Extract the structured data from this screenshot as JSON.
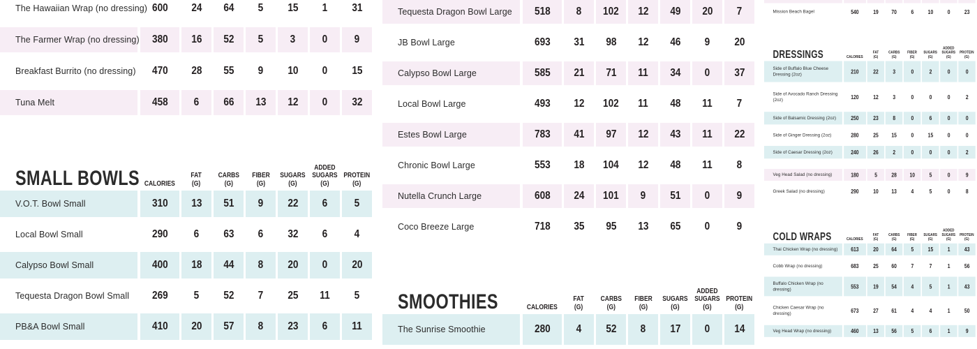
{
  "page": {
    "background": "#ffffff",
    "text_color": "#231f20",
    "shade_pink": "#f7edf5",
    "shade_blue": "#ddeff1"
  },
  "columns": [
    {
      "lines": [
        "CALORIES"
      ]
    },
    {
      "lines": [
        "FAT",
        "(G)"
      ]
    },
    {
      "lines": [
        "CARBS",
        "(G)"
      ]
    },
    {
      "lines": [
        "FIBER",
        "(G)"
      ]
    },
    {
      "lines": [
        "SUGARS",
        "(G)"
      ]
    },
    {
      "lines": [
        "ADDED",
        "SUGARS",
        "(G)"
      ]
    },
    {
      "lines": [
        "PROTEIN",
        "(G)"
      ]
    }
  ],
  "tables": {
    "hot_wraps": {
      "title": "",
      "show_header": false,
      "shade": "pink",
      "rows": [
        {
          "name": "The Hawaiian Wrap (no dressing)",
          "values": [
            "600",
            "24",
            "64",
            "5",
            "15",
            "1",
            "31"
          ],
          "shaded": false
        },
        {
          "name": "The Farmer Wrap (no dressing)",
          "values": [
            "380",
            "16",
            "52",
            "5",
            "3",
            "0",
            "9"
          ],
          "shaded": true
        },
        {
          "name": "Breakfast Burrito (no dressing)",
          "values": [
            "470",
            "28",
            "55",
            "9",
            "10",
            "0",
            "15"
          ],
          "shaded": false
        },
        {
          "name": "Tuna Melt",
          "values": [
            "458",
            "6",
            "66",
            "13",
            "12",
            "0",
            "32"
          ],
          "shaded": true
        }
      ]
    },
    "small_bowls": {
      "title": "SMALL BOWLS",
      "show_header": true,
      "shade": "blue",
      "rows": [
        {
          "name": "V.O.T. Bowl Small",
          "values": [
            "310",
            "13",
            "51",
            "9",
            "22",
            "6",
            "5"
          ],
          "shaded": true
        },
        {
          "name": "Local Bowl Small",
          "values": [
            "290",
            "6",
            "63",
            "6",
            "32",
            "6",
            "4"
          ],
          "shaded": false
        },
        {
          "name": "Calypso Bowl Small",
          "values": [
            "400",
            "18",
            "44",
            "8",
            "20",
            "0",
            "20"
          ],
          "shaded": true
        },
        {
          "name": "Tequesta Dragon Bowl Small",
          "values": [
            "269",
            "5",
            "52",
            "7",
            "25",
            "11",
            "5"
          ],
          "shaded": false
        },
        {
          "name": "PB&A Bowl Small",
          "values": [
            "410",
            "20",
            "57",
            "8",
            "23",
            "6",
            "11"
          ],
          "shaded": true
        }
      ]
    },
    "large_bowls": {
      "title": "",
      "show_header": false,
      "shade": "pink",
      "rows": [
        {
          "name": "Tequesta Dragon Bowl Large",
          "values": [
            "518",
            "8",
            "102",
            "12",
            "49",
            "20",
            "7"
          ],
          "shaded": true
        },
        {
          "name": "JB Bowl Large",
          "values": [
            "693",
            "31",
            "98",
            "12",
            "46",
            "9",
            "20"
          ],
          "shaded": false
        },
        {
          "name": "Calypso Bowl Large",
          "values": [
            "585",
            "21",
            "71",
            "11",
            "34",
            "0",
            "37"
          ],
          "shaded": true
        },
        {
          "name": "Local Bowl Large",
          "values": [
            "493",
            "12",
            "102",
            "11",
            "48",
            "11",
            "7"
          ],
          "shaded": false
        },
        {
          "name": "Estes Bowl Large",
          "values": [
            "783",
            "41",
            "97",
            "12",
            "43",
            "11",
            "22"
          ],
          "shaded": true
        },
        {
          "name": "Chronic Bowl Large",
          "values": [
            "553",
            "18",
            "104",
            "12",
            "48",
            "11",
            "8"
          ],
          "shaded": false
        },
        {
          "name": "Nutella Crunch Large",
          "values": [
            "608",
            "24",
            "101",
            "9",
            "51",
            "0",
            "9"
          ],
          "shaded": true
        },
        {
          "name": "Coco Breeze Large",
          "values": [
            "718",
            "35",
            "95",
            "13",
            "65",
            "0",
            "9"
          ],
          "shaded": false
        }
      ]
    },
    "smoothies": {
      "title": "SMOOTHIES",
      "show_header": true,
      "shade": "blue",
      "rows": [
        {
          "name": "The Sunrise Smoothie",
          "values": [
            "280",
            "4",
            "52",
            "8",
            "17",
            "0",
            "14"
          ],
          "shaded": true
        }
      ]
    },
    "bagels": {
      "title": "",
      "show_header": false,
      "shade": "pink",
      "rows": [
        {
          "name": "",
          "values": [
            "",
            "",
            "",
            "",
            "",
            "",
            ""
          ],
          "shaded": true,
          "partial": true
        },
        {
          "name": "Mission Beach Bagel",
          "values": [
            "540",
            "19",
            "70",
            "6",
            "10",
            "0",
            "23"
          ],
          "shaded": false
        }
      ]
    },
    "dressings": {
      "title": "DRESSINGS",
      "show_header": true,
      "shade": "blue",
      "rows": [
        {
          "name": "Side of Buffalo Blue Cheese Dressing (2oz)",
          "values": [
            "210",
            "22",
            "3",
            "0",
            "2",
            "0",
            "0"
          ],
          "shaded": true
        },
        {
          "name": "Side of Avocado Ranch Dressing (2oz)",
          "values": [
            "120",
            "12",
            "3",
            "0",
            "0",
            "0",
            "2"
          ],
          "shaded": false
        },
        {
          "name": "Side of Balsamic Dressing (2oz)",
          "values": [
            "250",
            "23",
            "8",
            "0",
            "6",
            "0",
            "0"
          ],
          "shaded": true
        },
        {
          "name": "Side of Ginger Dressing (2oz)",
          "values": [
            "280",
            "25",
            "15",
            "0",
            "15",
            "0",
            "0"
          ],
          "shaded": false
        },
        {
          "name": "Side of Caesar Dressing (2oz)",
          "values": [
            "240",
            "26",
            "2",
            "0",
            "0",
            "0",
            "2"
          ],
          "shaded": true
        }
      ]
    },
    "salads": {
      "title": "",
      "show_header": false,
      "shade": "pink",
      "rows": [
        {
          "name": "Veg Head Salad (no dressing)",
          "values": [
            "180",
            "5",
            "28",
            "10",
            "5",
            "0",
            "9"
          ],
          "shaded": true
        },
        {
          "name": "Greek Salad (no dressing)",
          "values": [
            "290",
            "10",
            "13",
            "4",
            "5",
            "0",
            "8"
          ],
          "shaded": false
        }
      ]
    },
    "cold_wraps": {
      "title": "COLD WRAPS",
      "show_header": true,
      "shade": "blue",
      "rows": [
        {
          "name": "Thai Chicken Wrap (no dressing)",
          "values": [
            "613",
            "20",
            "64",
            "5",
            "15",
            "1",
            "43"
          ],
          "shaded": true
        },
        {
          "name": "Cobb Wrap (no dressing)",
          "values": [
            "683",
            "25",
            "60",
            "7",
            "7",
            "1",
            "56"
          ],
          "shaded": false
        },
        {
          "name": "Buffalo Chicken Wrap (no dressing)",
          "values": [
            "553",
            "19",
            "54",
            "4",
            "5",
            "1",
            "43"
          ],
          "shaded": true
        },
        {
          "name": "Chicken Caesar Wrap (no dressing)",
          "values": [
            "673",
            "27",
            "61",
            "4",
            "4",
            "1",
            "50"
          ],
          "shaded": false
        },
        {
          "name": "Veg Head Wrap (no dressing)",
          "values": [
            "460",
            "13",
            "56",
            "5",
            "6",
            "1",
            "9"
          ],
          "shaded": true
        }
      ]
    }
  }
}
